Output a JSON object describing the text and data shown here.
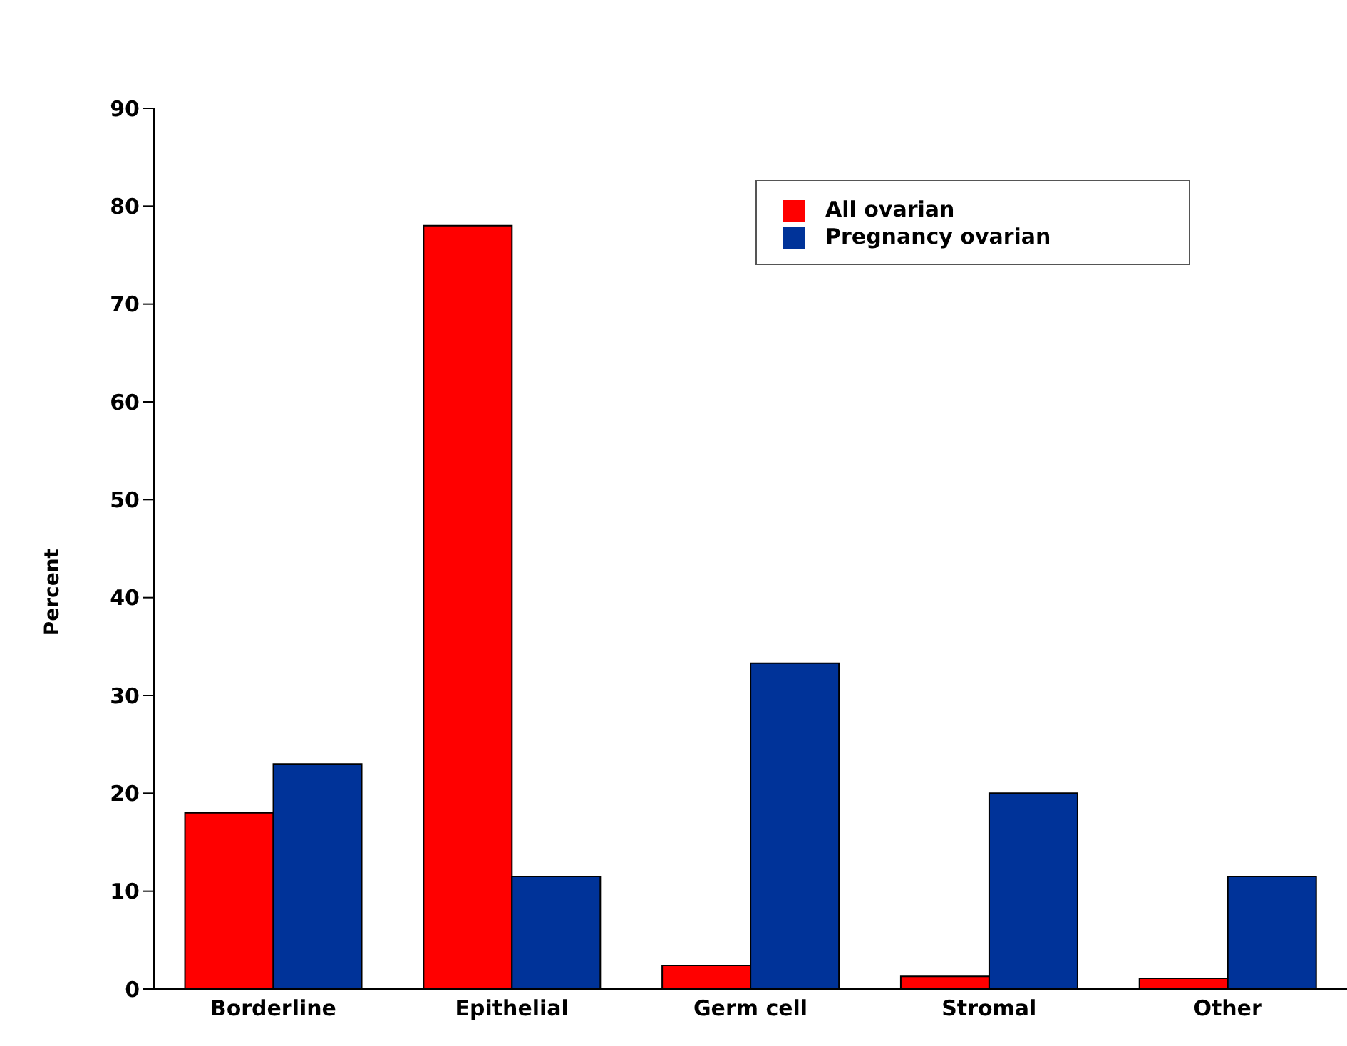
{
  "chart_data": {
    "type": "bar",
    "ylabel": "Percent",
    "categories": [
      "Borderline",
      "Epithelial",
      "Germ cell",
      "Stromal",
      "Other"
    ],
    "series": [
      {
        "name": "All ovarian",
        "color": "#ff0000",
        "values": [
          18,
          78,
          2.4,
          1.3,
          1.1
        ]
      },
      {
        "name": "Pregnancy ovarian",
        "color": "#003399",
        "values": [
          23,
          11.5,
          33.3,
          20,
          11.5
        ]
      }
    ],
    "ylim": [
      0,
      90
    ],
    "yticks": [
      0,
      10,
      20,
      30,
      40,
      50,
      60,
      70,
      80,
      90
    ],
    "grid": false,
    "legend": "top right"
  }
}
